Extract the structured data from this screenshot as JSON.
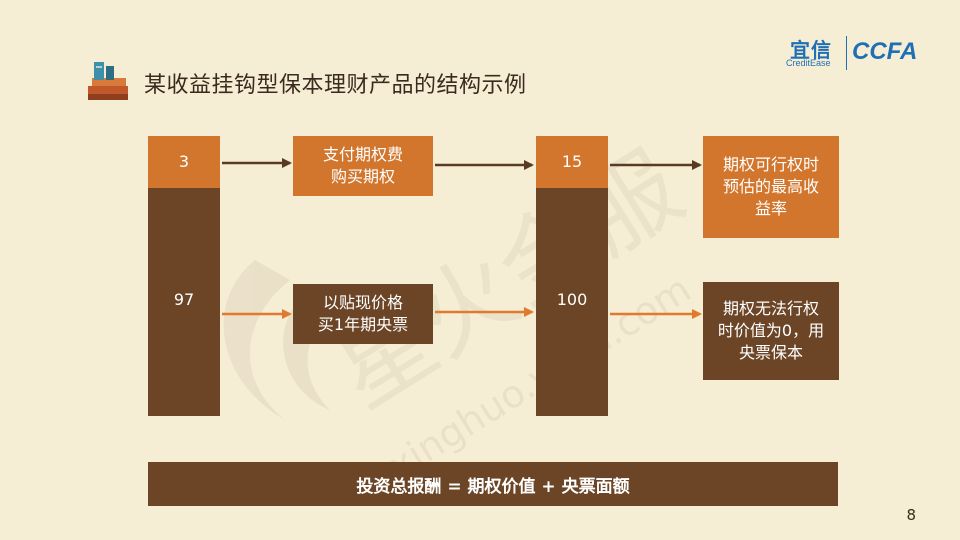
{
  "title": "某收益挂钩型保本理财产品的结构示例",
  "logo": {
    "cn": "宜信",
    "en": "CreditEase",
    "ccfa": "CCFA"
  },
  "watermark": {
    "text_cn": "星火金服",
    "text_en": "xinghuo.yixin.com"
  },
  "left_bar": {
    "top_value": "3",
    "bottom_value": "97"
  },
  "right_bar": {
    "top_value": "15",
    "bottom_value": "100"
  },
  "mid_top_box": {
    "line1": "支付期权费",
    "line2": "购买期权"
  },
  "mid_bottom_box": {
    "line1": "以贴现价格",
    "line2": "买1年期央票"
  },
  "result_top_box": {
    "line1": "期权可行权时",
    "line2": "预估的最高收",
    "line3": "益率"
  },
  "result_bottom_box": {
    "line1": "期权无法行权",
    "line2": "时价值为0，用",
    "line3": "央票保本"
  },
  "summary": "投资总报酬 = 期权价值 + 央票面额",
  "page_number": "8",
  "colors": {
    "background": "#F6EDD5",
    "orange": "#D2762E",
    "brown": "#6B4526",
    "arrow_orange": "#E07A2E",
    "arrow_brown": "#5A3A22"
  }
}
